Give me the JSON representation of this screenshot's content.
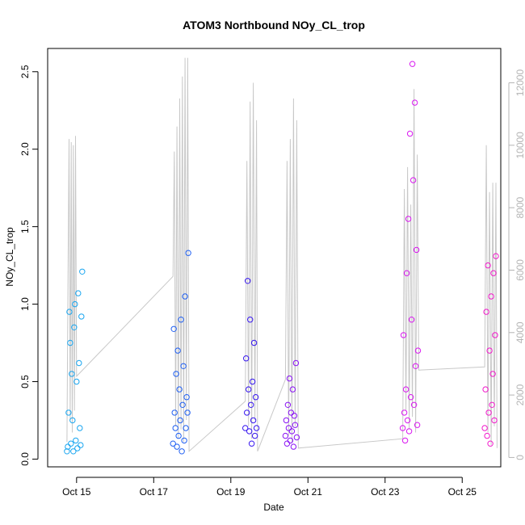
{
  "chart_data": {
    "type": "scatter",
    "title": "ATOM3 Northbound NOy_CL_trop",
    "xlabel": "Date",
    "ylabel": "NOy_CL_trop",
    "xlim": [
      "2017-10-14 06:00",
      "2017-10-26 00:00"
    ],
    "ylim": [
      -0.05,
      2.65
    ],
    "y2lim": [
      -300,
      13100
    ],
    "x_ticks": [
      {
        "label": "Oct 15",
        "value": "2017-10-15"
      },
      {
        "label": "Oct 17",
        "value": "2017-10-17"
      },
      {
        "label": "Oct 19",
        "value": "2017-10-19"
      },
      {
        "label": "Oct 21",
        "value": "2017-10-21"
      },
      {
        "label": "Oct 23",
        "value": "2017-10-23"
      },
      {
        "label": "Oct 25",
        "value": "2017-10-25"
      }
    ],
    "y_ticks": [
      "0.0",
      "0.5",
      "1.0",
      "1.5",
      "2.0",
      "2.5"
    ],
    "y2_ticks": [
      "0",
      "2000",
      "4000",
      "6000",
      "8000",
      "10000",
      "12000"
    ],
    "colors": {
      "altitude_trace": "#c8c8c8",
      "flight_colors": [
        "#1aa6f0",
        "#1f5ff2",
        "#3616f0",
        "#8a12f5",
        "#d918f0",
        "#f21acb"
      ]
    },
    "series": [
      {
        "values": [
          [
            "2017-10-14 18:00",
            0.05
          ],
          [
            "2017-10-14 18:30",
            0.08
          ],
          [
            "2017-10-14 19:00",
            0.3
          ],
          [
            "2017-10-14 19:30",
            0.95
          ],
          [
            "2017-10-14 20:00",
            0.75
          ],
          [
            "2017-10-14 20:30",
            0.1
          ],
          [
            "2017-10-14 21:00",
            0.55
          ],
          [
            "2017-10-14 21:30",
            0.25
          ],
          [
            "2017-10-14 22:00",
            0.05
          ],
          [
            "2017-10-14 22:30",
            0.85
          ],
          [
            "2017-10-14 23:00",
            1.0
          ],
          [
            "2017-10-14 23:30",
            0.12
          ],
          [
            "2017-10-15 00:00",
            0.5
          ],
          [
            "2017-10-15 00:30",
            0.07
          ],
          [
            "2017-10-15 01:00",
            1.07
          ],
          [
            "2017-10-15 01:30",
            0.62
          ],
          [
            "2017-10-15 02:00",
            0.2
          ],
          [
            "2017-10-15 02:30",
            0.09
          ],
          [
            "2017-10-15 03:00",
            0.92
          ],
          [
            "2017-10-15 03:30",
            1.21
          ]
        ]
      },
      {
        "values": [
          [
            "2017-10-17 12:00",
            0.1
          ],
          [
            "2017-10-17 12:30",
            0.84
          ],
          [
            "2017-10-17 13:00",
            0.3
          ],
          [
            "2017-10-17 13:30",
            0.2
          ],
          [
            "2017-10-17 14:00",
            0.55
          ],
          [
            "2017-10-17 14:30",
            0.08
          ],
          [
            "2017-10-17 15:00",
            0.7
          ],
          [
            "2017-10-17 15:30",
            0.15
          ],
          [
            "2017-10-17 16:00",
            0.45
          ],
          [
            "2017-10-17 16:30",
            0.25
          ],
          [
            "2017-10-17 17:00",
            0.9
          ],
          [
            "2017-10-17 17:30",
            0.05
          ],
          [
            "2017-10-17 18:00",
            0.35
          ],
          [
            "2017-10-17 18:30",
            0.6
          ],
          [
            "2017-10-17 19:00",
            0.12
          ],
          [
            "2017-10-17 19:30",
            1.05
          ],
          [
            "2017-10-17 20:00",
            0.2
          ],
          [
            "2017-10-17 20:30",
            0.4
          ],
          [
            "2017-10-17 21:00",
            0.3
          ],
          [
            "2017-10-17 21:30",
            1.33
          ]
        ]
      },
      {
        "values": [
          [
            "2017-10-19 09:00",
            0.2
          ],
          [
            "2017-10-19 09:30",
            0.65
          ],
          [
            "2017-10-19 10:00",
            0.3
          ],
          [
            "2017-10-19 10:30",
            1.15
          ],
          [
            "2017-10-19 11:00",
            0.45
          ],
          [
            "2017-10-19 11:30",
            0.18
          ],
          [
            "2017-10-19 12:00",
            0.9
          ],
          [
            "2017-10-19 12:30",
            0.35
          ],
          [
            "2017-10-19 13:00",
            0.1
          ],
          [
            "2017-10-19 13:30",
            0.5
          ],
          [
            "2017-10-19 14:00",
            0.25
          ],
          [
            "2017-10-19 14:30",
            0.75
          ],
          [
            "2017-10-19 15:00",
            0.15
          ],
          [
            "2017-10-19 15:30",
            0.4
          ],
          [
            "2017-10-19 16:00",
            0.2
          ]
        ]
      },
      {
        "values": [
          [
            "2017-10-20 10:00",
            0.15
          ],
          [
            "2017-10-20 10:30",
            0.25
          ],
          [
            "2017-10-20 11:00",
            0.1
          ],
          [
            "2017-10-20 11:30",
            0.35
          ],
          [
            "2017-10-20 12:00",
            0.2
          ],
          [
            "2017-10-20 12:30",
            0.52
          ],
          [
            "2017-10-20 13:00",
            0.12
          ],
          [
            "2017-10-20 13:30",
            0.3
          ],
          [
            "2017-10-20 14:00",
            0.18
          ],
          [
            "2017-10-20 14:30",
            0.45
          ],
          [
            "2017-10-20 15:00",
            0.08
          ],
          [
            "2017-10-20 15:30",
            0.28
          ],
          [
            "2017-10-20 16:00",
            0.22
          ],
          [
            "2017-10-20 16:30",
            0.62
          ],
          [
            "2017-10-20 17:00",
            0.14
          ]
        ]
      },
      {
        "values": [
          [
            "2017-10-23 11:00",
            0.2
          ],
          [
            "2017-10-23 11:30",
            0.8
          ],
          [
            "2017-10-23 12:00",
            0.3
          ],
          [
            "2017-10-23 12:30",
            0.12
          ],
          [
            "2017-10-23 13:00",
            0.45
          ],
          [
            "2017-10-23 13:30",
            1.2
          ],
          [
            "2017-10-23 14:00",
            0.25
          ],
          [
            "2017-10-23 14:30",
            1.55
          ],
          [
            "2017-10-23 15:00",
            0.18
          ],
          [
            "2017-10-23 15:30",
            2.1
          ],
          [
            "2017-10-23 16:00",
            0.4
          ],
          [
            "2017-10-23 16:30",
            0.9
          ],
          [
            "2017-10-23 17:00",
            2.55
          ],
          [
            "2017-10-23 17:30",
            1.8
          ],
          [
            "2017-10-23 18:00",
            0.35
          ],
          [
            "2017-10-23 18:30",
            2.3
          ],
          [
            "2017-10-23 19:00",
            0.6
          ],
          [
            "2017-10-23 19:30",
            1.35
          ],
          [
            "2017-10-23 20:00",
            0.22
          ],
          [
            "2017-10-23 20:30",
            0.7
          ]
        ]
      },
      {
        "values": [
          [
            "2017-10-25 14:00",
            0.2
          ],
          [
            "2017-10-25 14:30",
            0.45
          ],
          [
            "2017-10-25 15:00",
            0.95
          ],
          [
            "2017-10-25 15:30",
            0.15
          ],
          [
            "2017-10-25 16:00",
            1.25
          ],
          [
            "2017-10-25 16:30",
            0.3
          ],
          [
            "2017-10-25 17:00",
            0.7
          ],
          [
            "2017-10-25 17:30",
            0.1
          ],
          [
            "2017-10-25 18:00",
            1.05
          ],
          [
            "2017-10-25 18:30",
            0.35
          ],
          [
            "2017-10-25 19:00",
            0.55
          ],
          [
            "2017-10-25 19:30",
            1.2
          ],
          [
            "2017-10-25 20:00",
            0.25
          ],
          [
            "2017-10-25 20:30",
            0.8
          ],
          [
            "2017-10-25 21:00",
            1.31
          ]
        ]
      }
    ],
    "secondary_series": {
      "type": "line",
      "axis": "right",
      "values": [
        [
          "2017-10-14 18:00",
          500
        ],
        [
          "2017-10-14 18:40",
          5800
        ],
        [
          "2017-10-14 19:20",
          10200
        ],
        [
          "2017-10-14 20:00",
          1200
        ],
        [
          "2017-10-14 20:40",
          10100
        ],
        [
          "2017-10-14 21:20",
          800
        ],
        [
          "2017-10-14 22:00",
          10000
        ],
        [
          "2017-10-14 22:40",
          1500
        ],
        [
          "2017-10-14 23:20",
          10300
        ],
        [
          "2017-10-15 00:00",
          2600
        ],
        [
          "2017-10-17 12:00",
          5800
        ],
        [
          "2017-10-17 12:50",
          9800
        ],
        [
          "2017-10-17 13:40",
          1000
        ],
        [
          "2017-10-17 14:30",
          10600
        ],
        [
          "2017-10-17 15:20",
          600
        ],
        [
          "2017-10-17 16:10",
          11500
        ],
        [
          "2017-10-17 17:00",
          900
        ],
        [
          "2017-10-17 17:50",
          12200
        ],
        [
          "2017-10-17 18:40",
          500
        ],
        [
          "2017-10-17 19:30",
          12800
        ],
        [
          "2017-10-17 20:20",
          1200
        ],
        [
          "2017-10-17 21:10",
          12800
        ],
        [
          "2017-10-17 22:00",
          200
        ],
        [
          "2017-10-19 09:00",
          1800
        ],
        [
          "2017-10-19 10:00",
          9500
        ],
        [
          "2017-10-19 11:00",
          1000
        ],
        [
          "2017-10-19 12:00",
          11400
        ],
        [
          "2017-10-19 13:00",
          600
        ],
        [
          "2017-10-19 14:00",
          12000
        ],
        [
          "2017-10-19 15:00",
          1200
        ],
        [
          "2017-10-19 16:00",
          10800
        ],
        [
          "2017-10-19 16:40",
          200
        ],
        [
          "2017-10-20 10:00",
          2500
        ],
        [
          "2017-10-20 11:00",
          9500
        ],
        [
          "2017-10-20 12:00",
          700
        ],
        [
          "2017-10-20 13:00",
          10200
        ],
        [
          "2017-10-20 14:00",
          500
        ],
        [
          "2017-10-20 15:00",
          11500
        ],
        [
          "2017-10-20 16:00",
          1000
        ],
        [
          "2017-10-20 17:00",
          10800
        ],
        [
          "2017-10-20 18:00",
          300
        ],
        [
          "2017-10-23 11:00",
          600
        ],
        [
          "2017-10-23 12:00",
          8600
        ],
        [
          "2017-10-23 13:00",
          1500
        ],
        [
          "2017-10-23 14:00",
          9300
        ],
        [
          "2017-10-23 15:00",
          900
        ],
        [
          "2017-10-23 16:00",
          8100
        ],
        [
          "2017-10-23 17:00",
          1300
        ],
        [
          "2017-10-23 18:00",
          11800
        ],
        [
          "2017-10-23 19:00",
          800
        ],
        [
          "2017-10-23 20:00",
          9700
        ],
        [
          "2017-10-23 21:00",
          2800
        ],
        [
          "2017-10-25 14:00",
          2900
        ],
        [
          "2017-10-25 15:00",
          10000
        ],
        [
          "2017-10-25 16:00",
          800
        ],
        [
          "2017-10-25 17:00",
          8500
        ],
        [
          "2017-10-25 18:00",
          400
        ],
        [
          "2017-10-25 19:00",
          8800
        ],
        [
          "2017-10-25 20:00",
          1000
        ],
        [
          "2017-10-25 21:00",
          8800
        ],
        [
          "2017-10-25 21:40",
          300
        ]
      ]
    },
    "grid": false,
    "legend": "none"
  }
}
